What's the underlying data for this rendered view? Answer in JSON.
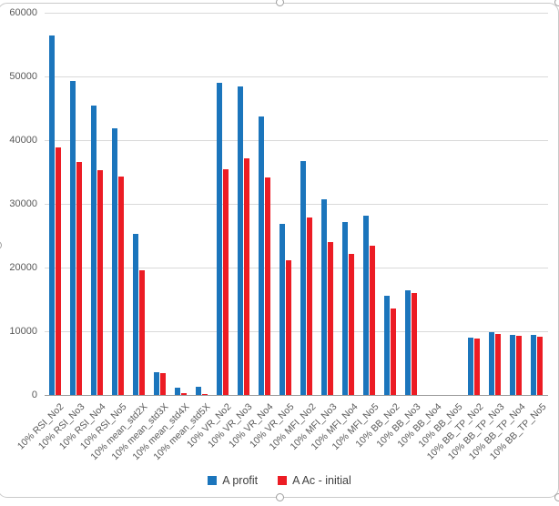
{
  "chart_data": {
    "type": "bar",
    "title": "",
    "xlabel": "",
    "ylabel": "",
    "ylim": [
      0,
      60000
    ],
    "ytick_step": 10000,
    "yticks": [
      0,
      10000,
      20000,
      30000,
      40000,
      50000,
      60000
    ],
    "grid": true,
    "legend_position": "bottom-center",
    "categories": [
      "10% RSI_No2",
      "10% RSI_No3",
      "10% RSI_No4",
      "10% RSI_No5",
      "10% mean_std2X",
      "10% mean_std3X",
      "10% mean_std4X",
      "10% mean_std5X",
      "10% VR_No2",
      "10% VR_No3",
      "10% VR_No4",
      "10% VR_No5",
      "10% MFI_No2",
      "10% MFI_No3",
      "10% MFI_No4",
      "10% MFI_No5",
      "10% BB_No2",
      "10% BB_No3",
      "10% BB_No4",
      "10% BB_No5",
      "10% BB_TP_No2",
      "10% BB_TP_No3",
      "10% BB_TP_No4",
      "10% BB_TP_No5"
    ],
    "series": [
      {
        "name": "A profit",
        "color": "#1b75bc",
        "values": [
          56500,
          49300,
          45400,
          41900,
          25300,
          3600,
          1100,
          1250,
          49000,
          48400,
          43700,
          26900,
          36700,
          30700,
          27200,
          28100,
          15600,
          16400,
          0,
          0,
          9000,
          9800,
          9500,
          9400
        ]
      },
      {
        "name": "A Ac - initial",
        "color": "#ec1c24",
        "values": [
          38900,
          36600,
          35300,
          34300,
          19600,
          3400,
          350,
          200,
          35500,
          37200,
          34100,
          21100,
          27900,
          24000,
          22100,
          23500,
          13600,
          16000,
          0,
          0,
          8800,
          9600,
          9300,
          9200
        ]
      }
    ]
  },
  "legend": {
    "items": [
      {
        "label": "A profit",
        "color": "#1b75bc"
      },
      {
        "label": "A Ac - initial",
        "color": "#ec1c24"
      }
    ]
  },
  "chart_object": {
    "selected": true,
    "handle_color": "#9e9e9e"
  }
}
